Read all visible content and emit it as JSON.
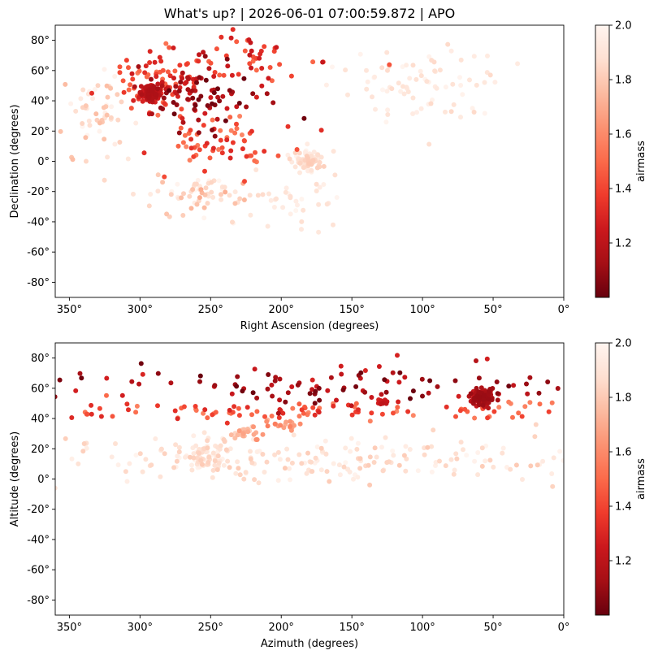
{
  "title": "What's up? | 2026-06-01 07:00:59.872 | APO",
  "colormap": {
    "name": "Reds_r",
    "stops": [
      "#67000d",
      "#a50f15",
      "#cb181d",
      "#ef3b2c",
      "#fb6a4a",
      "#fc9272",
      "#fcbba1",
      "#fee0d2",
      "#fff5f0"
    ]
  },
  "chart_data": [
    {
      "type": "scatter",
      "xlabel": "Right Ascension (degrees)",
      "ylabel": "Declination (degrees)",
      "xlim": [
        360,
        0
      ],
      "ylim": [
        -90,
        90
      ],
      "xticks": [
        350,
        300,
        250,
        200,
        150,
        100,
        50,
        0
      ],
      "xtick_labels": [
        "350°",
        "300°",
        "250°",
        "200°",
        "150°",
        "100°",
        "50°",
        "0°"
      ],
      "yticks": [
        -80,
        -60,
        -40,
        -20,
        0,
        20,
        40,
        60,
        80
      ],
      "ytick_labels": [
        "-80°",
        "-60°",
        "-40°",
        "-20°",
        "0°",
        "20°",
        "40°",
        "60°",
        "80°"
      ],
      "color_variable": "airmass",
      "clusters": [
        {
          "center": [
            292,
            45
          ],
          "spread": [
            5,
            4
          ],
          "count": 160,
          "airmass": [
            1.15,
            1.3
          ]
        },
        {
          "center": [
            255,
            45
          ],
          "spread": [
            35,
            18
          ],
          "count": 90,
          "airmass": [
            1.0,
            1.3
          ]
        },
        {
          "center": [
            285,
            50
          ],
          "spread": [
            25,
            22
          ],
          "count": 70,
          "airmass": [
            1.25,
            1.55
          ]
        },
        {
          "center": [
            240,
            12
          ],
          "spread": [
            40,
            14
          ],
          "count": 60,
          "airmass": [
            1.3,
            1.6
          ]
        },
        {
          "center": [
            220,
            70
          ],
          "spread": [
            40,
            12
          ],
          "count": 45,
          "airmass": [
            1.2,
            1.5
          ]
        },
        {
          "center": [
            180,
            0
          ],
          "spread": [
            10,
            6
          ],
          "count": 90,
          "airmass": [
            1.8,
            2.0
          ]
        },
        {
          "center": [
            255,
            -20
          ],
          "spread": [
            30,
            10
          ],
          "count": 60,
          "airmass": [
            1.7,
            2.0
          ]
        },
        {
          "center": [
            330,
            30
          ],
          "spread": [
            25,
            25
          ],
          "count": 60,
          "airmass": [
            1.75,
            2.0
          ]
        },
        {
          "center": [
            100,
            50
          ],
          "spread": [
            50,
            20
          ],
          "count": 80,
          "airmass": [
            1.85,
            2.0
          ]
        },
        {
          "center": [
            200,
            -25
          ],
          "spread": [
            40,
            15
          ],
          "count": 40,
          "airmass": [
            1.85,
            2.0
          ]
        }
      ],
      "colorbar": {
        "label": "airmass",
        "range": [
          1.0,
          2.0
        ],
        "ticks": [
          1.2,
          1.4,
          1.6,
          1.8,
          2.0
        ],
        "tick_labels": [
          "1.2",
          "1.4",
          "1.6",
          "1.8",
          "2.0"
        ]
      }
    },
    {
      "type": "scatter",
      "xlabel": "Azimuth (degrees)",
      "ylabel": "Altitude (degrees)",
      "xlim": [
        360,
        0
      ],
      "ylim": [
        -90,
        90
      ],
      "xticks": [
        350,
        300,
        250,
        200,
        150,
        100,
        50,
        0
      ],
      "xtick_labels": [
        "350°",
        "300°",
        "250°",
        "200°",
        "150°",
        "100°",
        "50°",
        "0°"
      ],
      "yticks": [
        -80,
        -60,
        -40,
        -20,
        0,
        20,
        40,
        60,
        80
      ],
      "ytick_labels": [
        "-80°",
        "-60°",
        "-40°",
        "-20°",
        "0°",
        "20°",
        "40°",
        "60°",
        "80°"
      ],
      "color_variable": "airmass",
      "clusters": [
        {
          "center": [
            58,
            54
          ],
          "spread": [
            6,
            4
          ],
          "count": 170,
          "airmass": [
            1.1,
            1.25
          ]
        },
        {
          "center": [
            180,
            62
          ],
          "spread": [
            180,
            12
          ],
          "count": 110,
          "airmass": [
            1.0,
            1.3
          ]
        },
        {
          "center": [
            180,
            45
          ],
          "spread": [
            180,
            5
          ],
          "count": 110,
          "airmass": [
            1.3,
            1.6
          ]
        },
        {
          "center": [
            180,
            12
          ],
          "spread": [
            180,
            14
          ],
          "count": 220,
          "airmass": [
            1.8,
            2.0
          ]
        },
        {
          "center": [
            255,
            15
          ],
          "spread": [
            12,
            8
          ],
          "count": 70,
          "airmass": [
            1.8,
            2.0
          ]
        },
        {
          "center": [
            128,
            51
          ],
          "spread": [
            3,
            2
          ],
          "count": 10,
          "airmass": [
            1.2,
            1.3
          ]
        },
        {
          "center": [
            225,
            30
          ],
          "spread": [
            12,
            5
          ],
          "count": 25,
          "airmass": [
            1.6,
            1.85
          ]
        },
        {
          "center": [
            200,
            36
          ],
          "spread": [
            12,
            3
          ],
          "count": 20,
          "airmass": [
            1.55,
            1.75
          ]
        }
      ],
      "colorbar": {
        "label": "airmass",
        "range": [
          1.0,
          2.0
        ],
        "ticks": [
          1.2,
          1.4,
          1.6,
          1.8,
          2.0
        ],
        "tick_labels": [
          "1.2",
          "1.4",
          "1.6",
          "1.8",
          "2.0"
        ]
      }
    }
  ]
}
